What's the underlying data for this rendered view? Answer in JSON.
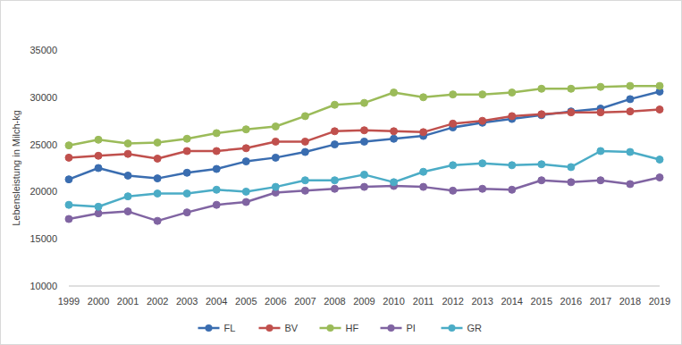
{
  "chart_data": {
    "type": "line",
    "y_label": "Lebensleistung in Milch-kg",
    "categories": [
      "1999",
      "2000",
      "2001",
      "2002",
      "2003",
      "2004",
      "2005",
      "2006",
      "2007",
      "2008",
      "2009",
      "2010",
      "2011",
      "2012",
      "2013",
      "2014",
      "2015",
      "2016",
      "2017",
      "2018",
      "2019"
    ],
    "series": [
      {
        "name": "FL",
        "color": "#3a6db0",
        "values": [
          21300,
          22500,
          21700,
          21400,
          22000,
          22400,
          23200,
          23600,
          24200,
          25000,
          25300,
          25600,
          25900,
          26800,
          27300,
          27700,
          28100,
          28500,
          28800,
          29800,
          30600
        ]
      },
      {
        "name": "BV",
        "color": "#c0504d",
        "values": [
          23600,
          23800,
          24000,
          23500,
          24300,
          24300,
          24600,
          25300,
          25300,
          26400,
          26500,
          26400,
          26300,
          27200,
          27500,
          28000,
          28200,
          28400,
          28400,
          28500,
          28700
        ]
      },
      {
        "name": "HF",
        "color": "#9bbb59",
        "values": [
          24900,
          25500,
          25100,
          25200,
          25600,
          26200,
          26600,
          26900,
          28000,
          29200,
          29400,
          30500,
          30000,
          30300,
          30300,
          30500,
          30900,
          30900,
          31100,
          31200,
          31200
        ]
      },
      {
        "name": "PI",
        "color": "#8064a2",
        "values": [
          17100,
          17700,
          17900,
          16900,
          17800,
          18600,
          18900,
          19900,
          20100,
          20300,
          20500,
          20600,
          20500,
          20100,
          20300,
          20200,
          21200,
          21000,
          21200,
          20800,
          21500
        ]
      },
      {
        "name": "GR",
        "color": "#4bacc6",
        "values": [
          18600,
          18400,
          19500,
          19800,
          19800,
          20200,
          20000,
          20500,
          21200,
          21200,
          21800,
          21000,
          22100,
          22800,
          23000,
          22800,
          22900,
          22600,
          24300,
          24200,
          23400
        ]
      }
    ],
    "ylim": [
      10000,
      35000
    ],
    "yticks": [
      10000,
      15000,
      20000,
      25000,
      30000,
      35000
    ],
    "grid": false,
    "legend": "bottom",
    "marker": "circle"
  }
}
